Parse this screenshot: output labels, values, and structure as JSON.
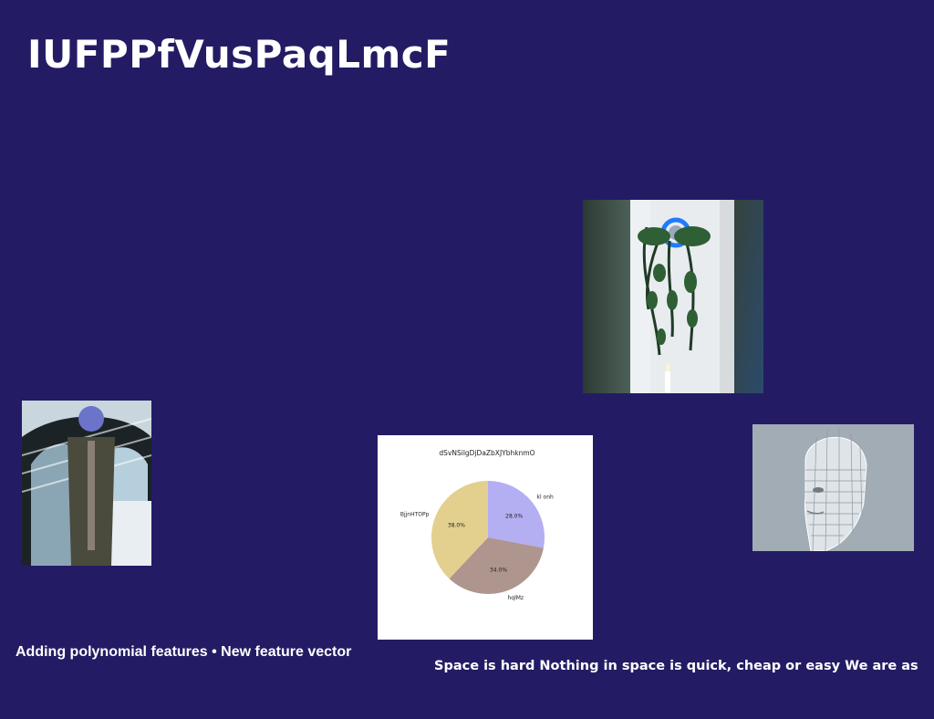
{
  "slide": {
    "title": "IUFPPfVusPaqLmcF",
    "caption_left": "Adding polynomial features • New feature vector",
    "caption_right": "Space is hard Nothing in space is quick, cheap or easy We are as",
    "background_color": "#231c64"
  },
  "images": {
    "window_plant": "photo of a window with a hanging plant and a blue neon ring",
    "man_walking": "photo of a man in a coat walking under arches",
    "wireframe_head": "3D wireframe render of a human head"
  },
  "chart_data": {
    "type": "pie",
    "title": "dSvNSilgDjDaZbXJYbhknmO",
    "labels": [
      "kl onh",
      "hqlMz",
      "BjjnHTOPp"
    ],
    "values": [
      28.0,
      34.0,
      38.0
    ],
    "value_labels": [
      "28.0%",
      "34.0%",
      "38.0%"
    ],
    "colors": [
      "#b4aef2",
      "#ae958e",
      "#e3d08f"
    ]
  }
}
